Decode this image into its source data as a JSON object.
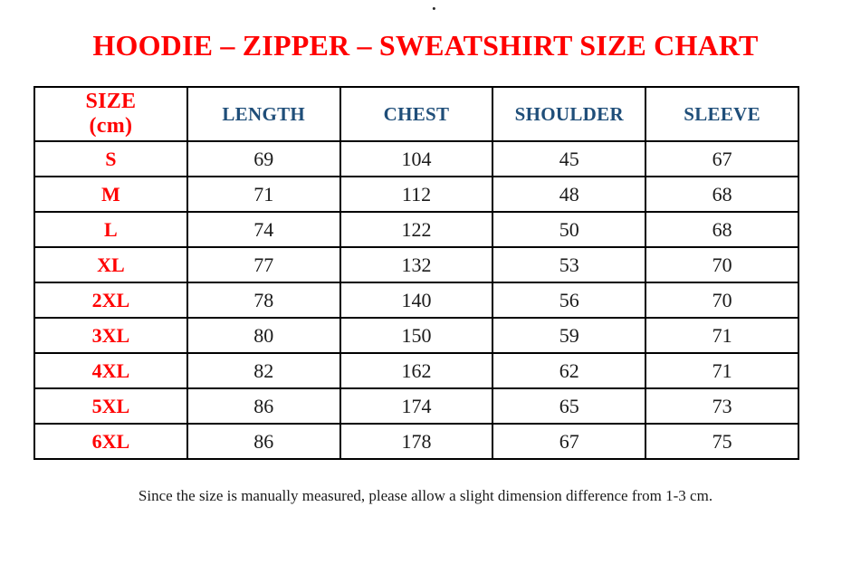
{
  "artifact": {
    "stray_dot": "."
  },
  "colors": {
    "title_red": "#ff0000",
    "size_label_red": "#ff0000",
    "column_header_blue": "#1f4e79",
    "body_text": "#1a1a1a",
    "grid_border": "#000000",
    "background": "#ffffff"
  },
  "chart_data": {
    "type": "table",
    "title": "HOODIE – ZIPPER – SWEATSHIRT SIZE CHART",
    "header": {
      "size_label": "SIZE",
      "size_unit": "(cm)",
      "measure_columns": [
        "LENGTH",
        "CHEST",
        "SHOULDER",
        "SLEEVE"
      ]
    },
    "rows": [
      {
        "size": "S",
        "length": 69,
        "chest": 104,
        "shoulder": 45,
        "sleeve": 67
      },
      {
        "size": "M",
        "length": 71,
        "chest": 112,
        "shoulder": 48,
        "sleeve": 68
      },
      {
        "size": "L",
        "length": 74,
        "chest": 122,
        "shoulder": 50,
        "sleeve": 68
      },
      {
        "size": "XL",
        "length": 77,
        "chest": 132,
        "shoulder": 53,
        "sleeve": 70
      },
      {
        "size": "2XL",
        "length": 78,
        "chest": 140,
        "shoulder": 56,
        "sleeve": 70
      },
      {
        "size": "3XL",
        "length": 80,
        "chest": 150,
        "shoulder": 59,
        "sleeve": 71
      },
      {
        "size": "4XL",
        "length": 82,
        "chest": 162,
        "shoulder": 62,
        "sleeve": 71
      },
      {
        "size": "5XL",
        "length": 86,
        "chest": 174,
        "shoulder": 65,
        "sleeve": 73
      },
      {
        "size": "6XL",
        "length": 86,
        "chest": 178,
        "shoulder": 67,
        "sleeve": 75
      }
    ],
    "footnote": "Since the size is manually measured, please allow a slight dimension difference from 1-3 cm.",
    "layout": {
      "grid": "on",
      "legend": "none"
    }
  }
}
